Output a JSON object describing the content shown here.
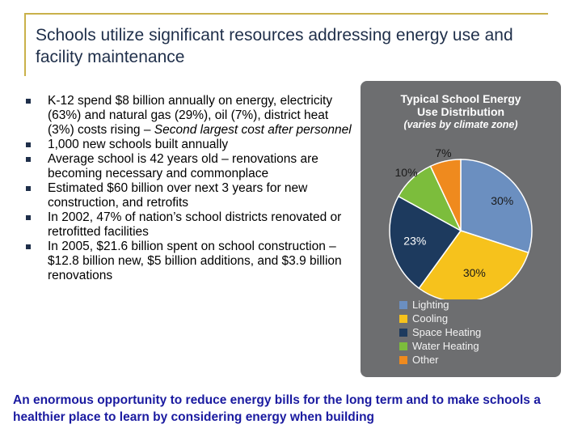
{
  "title": "Schools utilize significant resources addressing energy use and facility maintenance",
  "bullets": [
    {
      "text": "K-12 spend $8 billion annually on energy, electricity (63%) and natural gas (29%), oil (7%), district heat (3%) costs rising – ",
      "italic": "Second largest cost after personnel"
    },
    {
      "text": "1,000 new schools built annually",
      "italic": ""
    },
    {
      "text": "Average school is 42 years old – renovations are becoming necessary and commonplace",
      "italic": ""
    },
    {
      "text": "Estimated $60 billion over next 3 years for new construction, and retrofits",
      "italic": ""
    },
    {
      "text": "In 2002, 47% of nation’s school districts renovated or retrofitted facilities",
      "italic": ""
    },
    {
      "text": "In 2005, $21.6 billion spent on school construction – $12.8 billion new, $5 billion additions, and $3.9 billion renovations",
      "italic": ""
    }
  ],
  "chart_data": {
    "type": "pie",
    "title": "Typical School Energy Use Distribution",
    "subtitle": "(varies by climate zone)",
    "slices": [
      {
        "label": "Lighting",
        "value": 30,
        "display": "30%",
        "color": "#6b8fc0"
      },
      {
        "label": "Cooling",
        "value": 30,
        "display": "30%",
        "color": "#f6c21c"
      },
      {
        "label": "Space Heating",
        "value": 23,
        "display": "23%",
        "color": "#1d3a5e"
      },
      {
        "label": "Water Heating",
        "value": 10,
        "display": "10%",
        "color": "#7cbd3c"
      },
      {
        "label": "Other",
        "value": 7,
        "display": "7%",
        "color": "#ef8a1e"
      }
    ],
    "legend_placement": "bottom"
  },
  "footer": "An enormous opportunity to reduce energy bills for the long term and to make schools a healthier place to learn by considering energy when building"
}
